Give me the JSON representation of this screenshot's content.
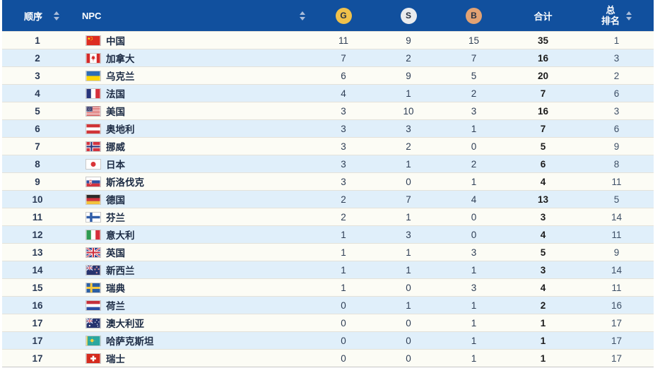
{
  "table": {
    "header": {
      "order_label": "顺序",
      "npc_label": "NPC",
      "gold_label": "G",
      "silver_label": "S",
      "bronze_label": "B",
      "total_label": "合计",
      "overall_rank_line1": "总",
      "overall_rank_line2": "排名"
    },
    "colors": {
      "header_bg": "#11509e",
      "row_bg": "#fcfcf5",
      "row_alt_bg": "#e0effa",
      "gold_medal": "#f0c14b",
      "silver_medal": "#e9ebee",
      "bronze_medal": "#e2a273"
    },
    "rows": [
      {
        "order": "1",
        "flag": "cn",
        "npc": "中国",
        "gold": "11",
        "silver": "9",
        "bronze": "15",
        "total": "35",
        "overall_rank": "1"
      },
      {
        "order": "2",
        "flag": "ca",
        "npc": "加拿大",
        "gold": "7",
        "silver": "2",
        "bronze": "7",
        "total": "16",
        "overall_rank": "3"
      },
      {
        "order": "3",
        "flag": "ua",
        "npc": "乌克兰",
        "gold": "6",
        "silver": "9",
        "bronze": "5",
        "total": "20",
        "overall_rank": "2"
      },
      {
        "order": "4",
        "flag": "fr",
        "npc": "法国",
        "gold": "4",
        "silver": "1",
        "bronze": "2",
        "total": "7",
        "overall_rank": "6"
      },
      {
        "order": "5",
        "flag": "us",
        "npc": "美国",
        "gold": "3",
        "silver": "10",
        "bronze": "3",
        "total": "16",
        "overall_rank": "3"
      },
      {
        "order": "6",
        "flag": "at",
        "npc": "奥地利",
        "gold": "3",
        "silver": "3",
        "bronze": "1",
        "total": "7",
        "overall_rank": "6"
      },
      {
        "order": "7",
        "flag": "no",
        "npc": "挪威",
        "gold": "3",
        "silver": "2",
        "bronze": "0",
        "total": "5",
        "overall_rank": "9"
      },
      {
        "order": "8",
        "flag": "jp",
        "npc": "日本",
        "gold": "3",
        "silver": "1",
        "bronze": "2",
        "total": "6",
        "overall_rank": "8"
      },
      {
        "order": "9",
        "flag": "sk",
        "npc": "斯洛伐克",
        "gold": "3",
        "silver": "0",
        "bronze": "1",
        "total": "4",
        "overall_rank": "11"
      },
      {
        "order": "10",
        "flag": "de",
        "npc": "德国",
        "gold": "2",
        "silver": "7",
        "bronze": "4",
        "total": "13",
        "overall_rank": "5"
      },
      {
        "order": "11",
        "flag": "fi",
        "npc": "芬兰",
        "gold": "2",
        "silver": "1",
        "bronze": "0",
        "total": "3",
        "overall_rank": "14"
      },
      {
        "order": "12",
        "flag": "it",
        "npc": "意大利",
        "gold": "1",
        "silver": "3",
        "bronze": "0",
        "total": "4",
        "overall_rank": "11"
      },
      {
        "order": "13",
        "flag": "gb",
        "npc": "英国",
        "gold": "1",
        "silver": "1",
        "bronze": "3",
        "total": "5",
        "overall_rank": "9"
      },
      {
        "order": "14",
        "flag": "nz",
        "npc": "新西兰",
        "gold": "1",
        "silver": "1",
        "bronze": "1",
        "total": "3",
        "overall_rank": "14"
      },
      {
        "order": "15",
        "flag": "se",
        "npc": "瑞典",
        "gold": "1",
        "silver": "0",
        "bronze": "3",
        "total": "4",
        "overall_rank": "11"
      },
      {
        "order": "16",
        "flag": "nl",
        "npc": "荷兰",
        "gold": "0",
        "silver": "1",
        "bronze": "1",
        "total": "2",
        "overall_rank": "16"
      },
      {
        "order": "17",
        "flag": "au",
        "npc": "澳大利亚",
        "gold": "0",
        "silver": "0",
        "bronze": "1",
        "total": "1",
        "overall_rank": "17"
      },
      {
        "order": "17",
        "flag": "kz",
        "npc": "哈萨克斯坦",
        "gold": "0",
        "silver": "0",
        "bronze": "1",
        "total": "1",
        "overall_rank": "17"
      },
      {
        "order": "17",
        "flag": "ch",
        "npc": "瑞士",
        "gold": "0",
        "silver": "0",
        "bronze": "1",
        "total": "1",
        "overall_rank": "17"
      }
    ]
  }
}
